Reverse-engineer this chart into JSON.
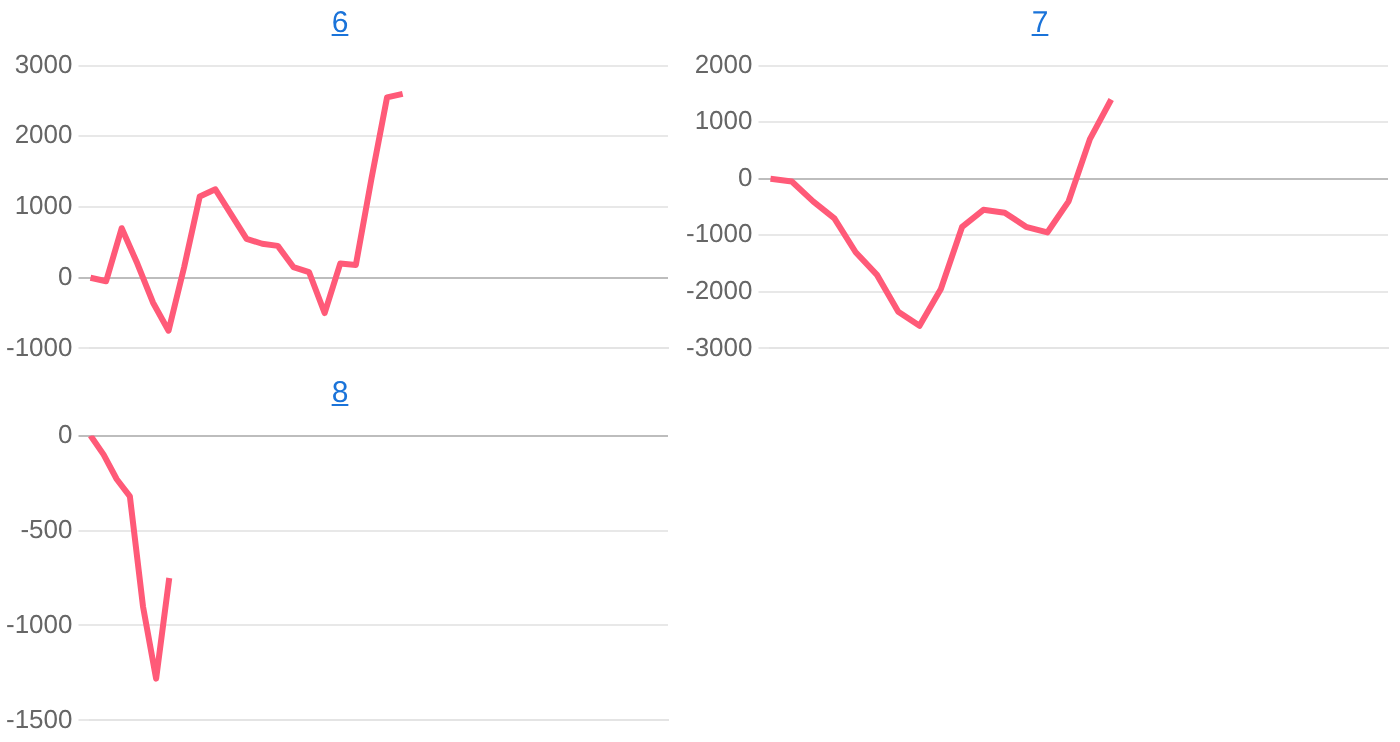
{
  "chart_data": [
    {
      "type": "line",
      "title": "6",
      "categories": [
        null,
        null,
        null,
        null,
        null,
        null,
        null,
        null,
        null,
        null,
        null,
        null,
        null,
        null,
        null,
        null,
        null,
        null,
        null,
        null,
        null,
        null,
        null,
        null,
        null,
        null,
        null,
        null,
        null,
        null,
        null,
        null,
        null,
        null,
        null,
        null,
        null,
        null
      ],
      "series": [
        {
          "color": "#ff5a78",
          "values": [
            0,
            -50,
            700,
            200,
            -350,
            -750,
            150,
            1150,
            1250,
            900,
            550,
            480,
            450,
            150,
            80,
            -500,
            200,
            180,
            1400,
            2550,
            2600,
            null,
            null,
            null,
            null,
            null,
            null,
            null,
            null,
            null,
            null,
            null,
            null,
            null,
            null,
            null,
            null,
            null
          ]
        }
      ],
      "ylim": [
        -1000,
        3000
      ],
      "yticks": [
        -1000,
        0,
        1000,
        2000,
        3000
      ],
      "grid": "y",
      "tick_labels": "y",
      "marker": "none",
      "line_style": "solid"
    },
    {
      "type": "line",
      "title": "7",
      "categories": [
        null,
        null,
        null,
        null,
        null,
        null,
        null,
        null,
        null,
        null,
        null,
        null,
        null,
        null,
        null,
        null,
        null,
        null,
        null,
        null,
        null,
        null,
        null,
        null,
        null,
        null,
        null,
        null,
        null,
        null
      ],
      "series": [
        {
          "color": "#ff5a78",
          "values": [
            0,
            -50,
            -400,
            -700,
            -1300,
            -1700,
            -2350,
            -2600,
            -1950,
            -850,
            -550,
            -600,
            -850,
            -950,
            -400,
            700,
            1400,
            null,
            null,
            null,
            null,
            null,
            null,
            null,
            null,
            null,
            null,
            null,
            null,
            null
          ]
        }
      ],
      "ylim": [
        -3000,
        2000
      ],
      "yticks": [
        -3000,
        -2000,
        -1000,
        0,
        1000,
        2000
      ],
      "grid": "y",
      "tick_labels": "y",
      "marker": "none",
      "line_style": "solid"
    },
    {
      "type": "line",
      "title": "8",
      "categories": [
        null,
        null,
        null,
        null,
        null,
        null,
        null,
        null,
        null,
        null,
        null,
        null,
        null,
        null,
        null,
        null,
        null,
        null,
        null,
        null,
        null,
        null,
        null,
        null,
        null,
        null,
        null,
        null,
        null,
        null,
        null,
        null,
        null,
        null,
        null,
        null,
        null,
        null,
        null,
        null,
        null,
        null,
        null,
        null,
        null
      ],
      "series": [
        {
          "color": "#ff5a78",
          "values": [
            0,
            -100,
            -230,
            -320,
            -900,
            -1280,
            -750,
            null,
            null,
            null,
            null,
            null,
            null,
            null,
            null,
            null,
            null,
            null,
            null,
            null,
            null,
            null,
            null,
            null,
            null,
            null,
            null,
            null,
            null,
            null,
            null,
            null,
            null,
            null,
            null,
            null,
            null,
            null,
            null,
            null,
            null,
            null,
            null,
            null,
            null
          ]
        }
      ],
      "ylim": [
        -1500,
        0
      ],
      "yticks": [
        -1500,
        -1000,
        -500,
        0
      ],
      "grid": "y",
      "tick_labels": "y",
      "marker": "none",
      "line_style": "solid"
    }
  ]
}
